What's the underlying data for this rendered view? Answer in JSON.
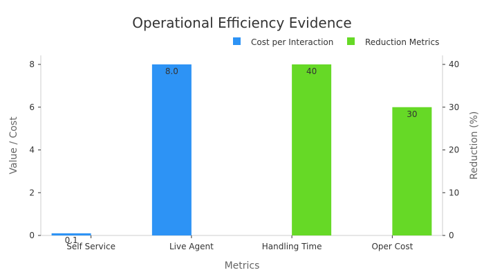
{
  "chart_data": {
    "type": "bar",
    "title": "Operational Efficiency Evidence",
    "xlabel": "Metrics",
    "ylabel": "Value / Cost",
    "y2label": "Reduction (%)",
    "categories": [
      "Self Service",
      "Live Agent",
      "Handling Time",
      "Oper Cost"
    ],
    "ylim": [
      0,
      8
    ],
    "y2lim": [
      0,
      40
    ],
    "yticks": [
      "0",
      "2",
      "4",
      "6",
      "8"
    ],
    "y2ticks": [
      "0",
      "10",
      "20",
      "30",
      "40"
    ],
    "legend_position": "top-right",
    "grid": false,
    "series": [
      {
        "name": "Cost per Interaction",
        "axis": "left",
        "color": "#2d93f5",
        "values": [
          0.1,
          8.0,
          null,
          null
        ],
        "labels": [
          "0.1",
          "8.0",
          "",
          ""
        ]
      },
      {
        "name": "Reduction Metrics",
        "axis": "right",
        "color": "#66d926",
        "values": [
          null,
          null,
          40,
          30
        ],
        "labels": [
          "",
          "",
          "40",
          "30"
        ]
      }
    ]
  }
}
